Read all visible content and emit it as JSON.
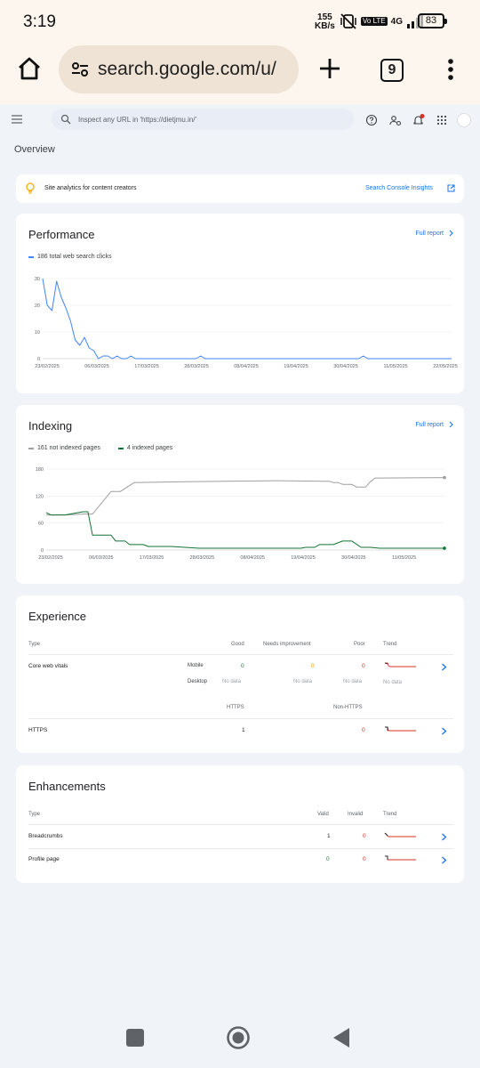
{
  "status_bar": {
    "time": "3:19",
    "rate_value": "155",
    "rate_unit": "KB/s",
    "volte": "Vo LTE",
    "network": "4G",
    "battery": "83"
  },
  "browser": {
    "url": "search.google.com/u/",
    "tab_count": "9"
  },
  "gsc": {
    "search_placeholder": "Inspect any URL in 'https://dietjmu.in/'",
    "page_title": "Overview"
  },
  "insights_banner": {
    "text": "Site analytics for content creators",
    "link": "Search Console Insights"
  },
  "performance": {
    "title": "Performance",
    "full_report": "Full report",
    "legend": "186 total web search clicks",
    "color": "#4285f4"
  },
  "indexing": {
    "title": "Indexing",
    "full_report": "Full report",
    "legend_not_indexed": "161 not indexed pages",
    "legend_indexed": "4 indexed pages",
    "color_not_indexed": "#9e9e9e",
    "color_indexed": "#137333"
  },
  "experience": {
    "title": "Experience",
    "headers": {
      "type": "Type",
      "good": "Good",
      "needs": "Needs improvement",
      "poor": "Poor",
      "trend": "Trend"
    },
    "cwv": {
      "label": "Core web vitals",
      "mobile": {
        "label": "Mobile",
        "good": "0",
        "needs": "0",
        "poor": "0"
      },
      "desktop": {
        "label": "Desktop",
        "good": "No data",
        "needs": "No data",
        "poor": "No data",
        "trend": "No data"
      }
    },
    "https_headers": {
      "https": "HTTPS",
      "non_https": "Non-HTTPS"
    },
    "https": {
      "label": "HTTPS",
      "https": "1",
      "non_https": "0"
    }
  },
  "enhancements": {
    "title": "Enhancements",
    "headers": {
      "type": "Type",
      "valid": "Valid",
      "invalid": "Invalid",
      "trend": "Trend"
    },
    "rows": [
      {
        "label": "Breadcrumbs",
        "valid": "1",
        "invalid": "0"
      },
      {
        "label": "Profile page",
        "valid": "0",
        "invalid": "0"
      }
    ]
  },
  "chart_data": [
    {
      "type": "line",
      "title": "Performance",
      "ylim": [
        0,
        30
      ],
      "yticks": [
        0,
        10,
        20,
        30
      ],
      "xtick_labels": [
        "23/02/2025",
        "06/03/2025",
        "17/03/2025",
        "28/03/2025",
        "08/04/2025",
        "19/04/2025",
        "30/04/2025",
        "11/05/2025",
        "22/05/2025"
      ],
      "x_range": [
        0,
        88
      ],
      "series": [
        {
          "name": "186 total web search clicks",
          "x": [
            0,
            1,
            2,
            3,
            4,
            5,
            6,
            7,
            8,
            9,
            10,
            11,
            12,
            13,
            14,
            15,
            16,
            17,
            18,
            19,
            20,
            22,
            24,
            26,
            33,
            34,
            35,
            45,
            68,
            69,
            70,
            88
          ],
          "y": [
            30,
            20,
            18,
            29,
            23,
            19,
            14,
            7,
            5,
            8,
            4,
            3,
            0,
            1,
            1,
            0,
            1,
            0,
            0,
            1,
            0,
            0,
            0,
            0,
            0,
            1,
            0,
            0,
            0,
            1,
            0,
            0
          ]
        }
      ]
    },
    {
      "type": "line",
      "title": "Indexing",
      "ylim": [
        0,
        180
      ],
      "yticks": [
        0,
        60,
        120,
        180
      ],
      "xtick_labels": [
        "23/02/2025",
        "06/03/2025",
        "17/03/2025",
        "28/03/2025",
        "08/04/2025",
        "19/04/2025",
        "30/04/2025",
        "11/05/2025"
      ],
      "x_range": [
        0,
        86
      ],
      "series": [
        {
          "name": "161 not indexed pages",
          "x": [
            0,
            4,
            8,
            9,
            10,
            14,
            16,
            19,
            30,
            50,
            60,
            61,
            62,
            63,
            64,
            65,
            66,
            67,
            68,
            69,
            70,
            71,
            72,
            86
          ],
          "y": [
            78,
            78,
            80,
            80,
            80,
            130,
            130,
            150,
            152,
            154,
            153,
            153,
            150,
            150,
            146,
            146,
            146,
            140,
            140,
            140,
            152,
            160,
            160,
            161
          ]
        },
        {
          "name": "4 indexed pages",
          "x": [
            0,
            1,
            4,
            8,
            9,
            10,
            14,
            15,
            17,
            18,
            21,
            22,
            27,
            33,
            50,
            52,
            55,
            56,
            58,
            59,
            62,
            64,
            66,
            68,
            70,
            72,
            86
          ],
          "y": [
            83,
            78,
            78,
            85,
            85,
            33,
            33,
            20,
            20,
            12,
            12,
            8,
            8,
            4,
            4,
            4,
            4,
            6,
            6,
            12,
            12,
            20,
            20,
            6,
            6,
            4,
            4
          ]
        }
      ]
    }
  ]
}
